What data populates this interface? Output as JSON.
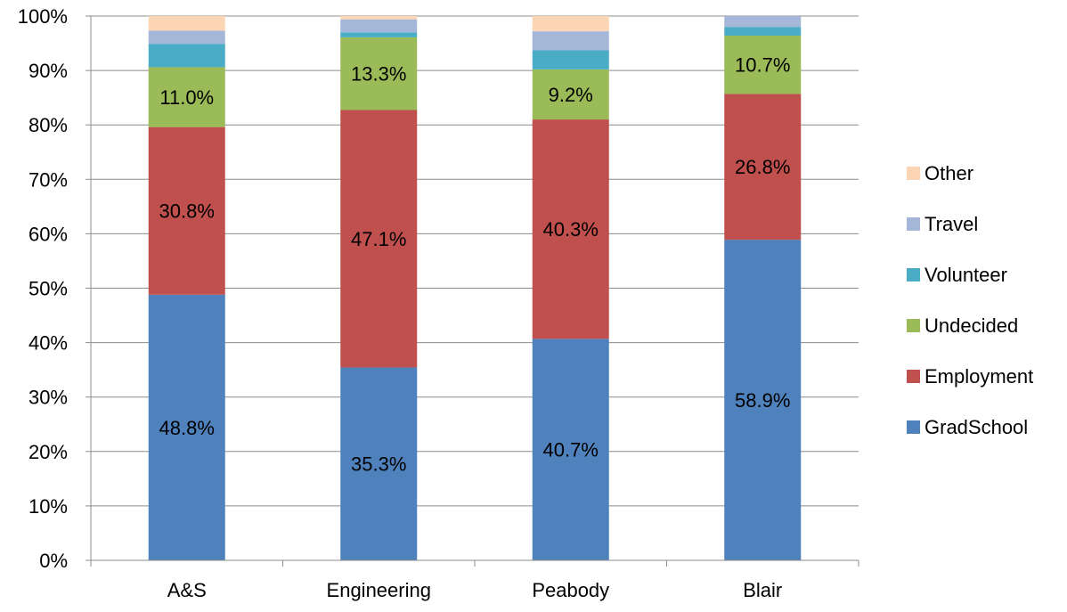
{
  "chart_data": {
    "type": "bar",
    "stacked": true,
    "percent_stacked": true,
    "categories": [
      "A&S",
      "Engineering",
      "Peabody",
      "Blair"
    ],
    "series": [
      {
        "name": "GradSchool",
        "color": "#4F81BD",
        "values": [
          48.8,
          35.3,
          40.7,
          58.9
        ],
        "labels": [
          "48.8%",
          "35.3%",
          "40.7%",
          "58.9%"
        ]
      },
      {
        "name": "Employment",
        "color": "#C0504D",
        "values": [
          30.8,
          47.1,
          40.3,
          26.8
        ],
        "labels": [
          "30.8%",
          "47.1%",
          "40.3%",
          "26.8%"
        ]
      },
      {
        "name": "Undecided",
        "color": "#9BBB59",
        "values": [
          11.0,
          13.3,
          9.2,
          10.7
        ],
        "labels": [
          "11.0%",
          "13.3%",
          "9.2%",
          "10.7%"
        ]
      },
      {
        "name": "Volunteer",
        "color": "#4BACC6",
        "values": [
          4.3,
          0.9,
          3.5,
          1.6
        ],
        "labels": [
          "",
          "",
          "",
          ""
        ]
      },
      {
        "name": "Travel",
        "color": "#A5B7D9",
        "values": [
          2.4,
          2.4,
          3.5,
          2.0
        ],
        "labels": [
          "",
          "",
          "",
          ""
        ]
      },
      {
        "name": "Other",
        "color": "#FCD5B5",
        "values": [
          2.7,
          0.6,
          2.8,
          0.0
        ],
        "labels": [
          "",
          "",
          "",
          ""
        ]
      }
    ],
    "y_ticks": [
      "0%",
      "10%",
      "20%",
      "30%",
      "40%",
      "50%",
      "60%",
      "70%",
      "80%",
      "90%",
      "100%"
    ],
    "ylim": [
      0,
      100
    ],
    "grid": true,
    "legend": "right",
    "legend_order": [
      "Other",
      "Travel",
      "Volunteer",
      "Undecided",
      "Employment",
      "GradSchool"
    ]
  }
}
